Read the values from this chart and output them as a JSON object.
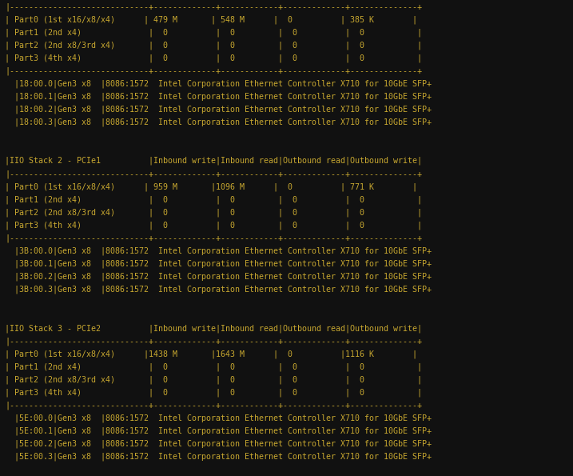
{
  "bg_color": "#111111",
  "text_color": "#c8a830",
  "font_size": 7.2,
  "figsize": [
    7.17,
    5.95
  ],
  "dpi": 100,
  "lines": [
    "|-----------------------------+-------------+------------+-------------+--------------+",
    "| Part0 (1st x16/x8/x4)      | 479 M       | 548 M      |  0          | 385 K        |",
    "| Part1 (2nd x4)              |  0          |  0         |  0          |  0           |",
    "| Part2 (2nd x8/3rd x4)       |  0          |  0         |  0          |  0           |",
    "| Part3 (4th x4)              |  0          |  0         |  0          |  0           |",
    "|-----------------------------+-------------+------------+-------------+--------------+",
    "  |18:00.0|Gen3 x8  |8086:1572  Intel Corporation Ethernet Controller X710 for 10GbE SFP+",
    "  |18:00.1|Gen3 x8  |8086:1572  Intel Corporation Ethernet Controller X710 for 10GbE SFP+",
    "  |18:00.2|Gen3 x8  |8086:1572  Intel Corporation Ethernet Controller X710 for 10GbE SFP+",
    "  |18:00.3|Gen3 x8  |8086:1572  Intel Corporation Ethernet Controller X710 for 10GbE SFP+",
    "",
    "",
    "|IIO Stack 2 - PCIe1          |Inbound write|Inbound read|Outbound read|Outbound write|",
    "|-----------------------------+-------------+------------+-------------+--------------+",
    "| Part0 (1st x16/x8/x4)      | 959 M       |1096 M      |  0          | 771 K        |",
    "| Part1 (2nd x4)              |  0          |  0         |  0          |  0           |",
    "| Part2 (2nd x8/3rd x4)       |  0          |  0         |  0          |  0           |",
    "| Part3 (4th x4)              |  0          |  0         |  0          |  0           |",
    "|-----------------------------+-------------+------------+-------------+--------------+",
    "  |3B:00.0|Gen3 x8  |8086:1572  Intel Corporation Ethernet Controller X710 for 10GbE SFP+",
    "  |3B:00.1|Gen3 x8  |8086:1572  Intel Corporation Ethernet Controller X710 for 10GbE SFP+",
    "  |3B:00.2|Gen3 x8  |8086:1572  Intel Corporation Ethernet Controller X710 for 10GbE SFP+",
    "  |3B:00.3|Gen3 x8  |8086:1572  Intel Corporation Ethernet Controller X710 for 10GbE SFP+",
    "",
    "",
    "|IIO Stack 3 - PCIe2          |Inbound write|Inbound read|Outbound read|Outbound write|",
    "|-----------------------------+-------------+------------+-------------+--------------+",
    "| Part0 (1st x16/x8/x4)      |1438 M       |1643 M      |  0          |1116 K        |",
    "| Part1 (2nd x4)              |  0          |  0         |  0          |  0           |",
    "| Part2 (2nd x8/3rd x4)       |  0          |  0         |  0          |  0           |",
    "| Part3 (4th x4)              |  0          |  0         |  0          |  0           |",
    "|-----------------------------+-------------+------------+-------------+--------------+",
    "  |5E:00.0|Gen3 x8  |8086:1572  Intel Corporation Ethernet Controller X710 for 10GbE SFP+",
    "  |5E:00.1|Gen3 x8  |8086:1572  Intel Corporation Ethernet Controller X710 for 10GbE SFP+",
    "  |5E:00.2|Gen3 x8  |8086:1572  Intel Corporation Ethernet Controller X710 for 10GbE SFP+",
    "  |5E:00.3|Gen3 x8  |8086:1572  Intel Corporation Ethernet Controller X710 for 10GbE SFP+"
  ]
}
